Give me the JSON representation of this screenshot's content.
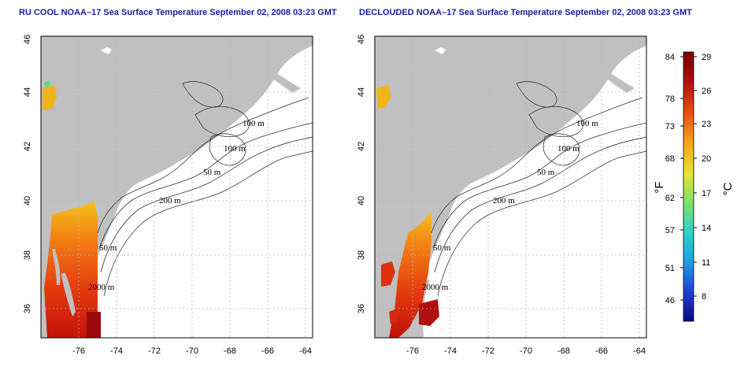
{
  "panels": [
    {
      "title": "RU COOL NOAA–17 Sea Surface Temperature September 02, 2008 03:23 GMT"
    },
    {
      "title": "DECLOUDED NOAA–17 Sea Surface Temperature September 02, 2008 03:23 GMT"
    }
  ],
  "map": {
    "lon_ticks": [
      "-76",
      "-74",
      "-72",
      "-70",
      "-68",
      "-66",
      "-64"
    ],
    "lat_ticks": [
      "36",
      "38",
      "40",
      "42",
      "44",
      "46"
    ],
    "contour_labels": [
      "100 m",
      "100 m",
      "50 m",
      "200 m",
      "50 m",
      "2000 m"
    ],
    "colors": {
      "land": "#c0c0c0",
      "ocean": "#ffffff",
      "contour": "#333333",
      "grid": "#b5b5b5"
    }
  },
  "colorbar": {
    "fahrenheit_ticks": [
      "84",
      "78",
      "73",
      "68",
      "62",
      "57",
      "51",
      "46"
    ],
    "celsius_ticks": [
      "29",
      "26",
      "23",
      "20",
      "17",
      "14",
      "11",
      "8"
    ],
    "fahrenheit_label": "°F",
    "celsius_label": "°C",
    "colors": [
      "#0a0a8a",
      "#1f3fd8",
      "#1f9ee6",
      "#2ad4c8",
      "#7ee36a",
      "#e8e42a",
      "#f6a51a",
      "#ea4a0e",
      "#b10e0e",
      "#7a0000"
    ]
  }
}
